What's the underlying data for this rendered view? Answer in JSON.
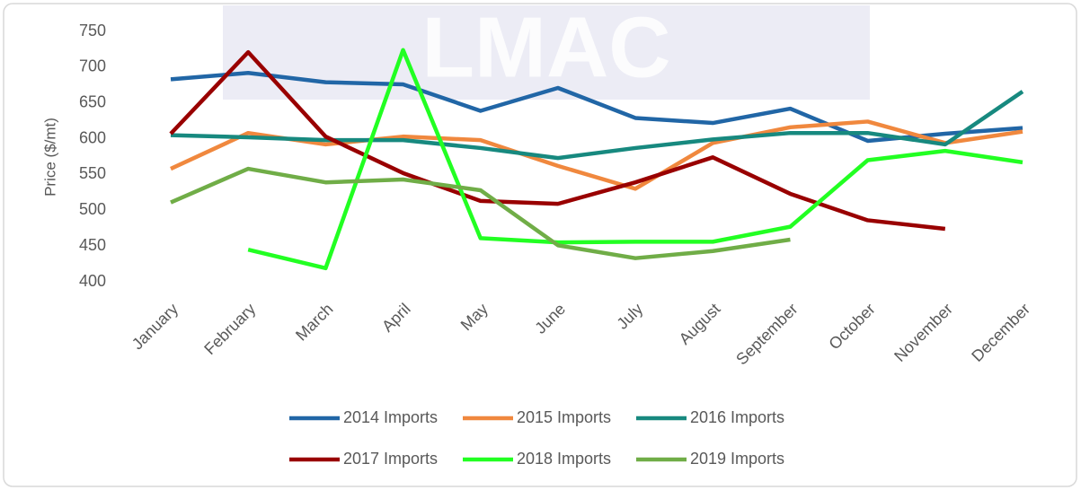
{
  "chart_data": {
    "type": "line",
    "watermark": "LMAC",
    "y_label": "Price ($/mt)",
    "categories": [
      "January",
      "February",
      "March",
      "April",
      "May",
      "June",
      "July",
      "August",
      "September",
      "October",
      "November",
      "December"
    ],
    "series": [
      {
        "name": "2014 Imports",
        "color": "#2166a6",
        "values": [
          683,
          692,
          679,
          676,
          639,
          671,
          629,
          622,
          642,
          597,
          607,
          615
        ]
      },
      {
        "name": "2015 Imports",
        "color": "#f0883e",
        "values": [
          558,
          608,
          592,
          603,
          598,
          562,
          530,
          594,
          616,
          624,
          594,
          610
        ]
      },
      {
        "name": "2016 Imports",
        "color": "#17897f",
        "values": [
          605,
          602,
          598,
          598,
          587,
          573,
          587,
          599,
          608,
          608,
          592,
          666
        ]
      },
      {
        "name": "2017 Imports",
        "color": "#990000",
        "values": [
          607,
          721,
          603,
          552,
          513,
          509,
          539,
          574,
          523,
          486,
          474,
          null
        ]
      },
      {
        "name": "2018 Imports",
        "color": "#22ff22",
        "values": [
          null,
          445,
          419,
          724,
          461,
          455,
          456,
          456,
          477,
          570,
          583,
          567
        ]
      },
      {
        "name": "2019 Imports",
        "color": "#70ad47",
        "values": [
          511,
          558,
          539,
          543,
          528,
          451,
          433,
          443,
          459,
          null,
          null,
          null
        ]
      }
    ],
    "ylim": [
      400,
      750
    ],
    "yticks": [
      400,
      450,
      500,
      550,
      600,
      650,
      700,
      750
    ],
    "grid": false,
    "legend": "bottom"
  }
}
